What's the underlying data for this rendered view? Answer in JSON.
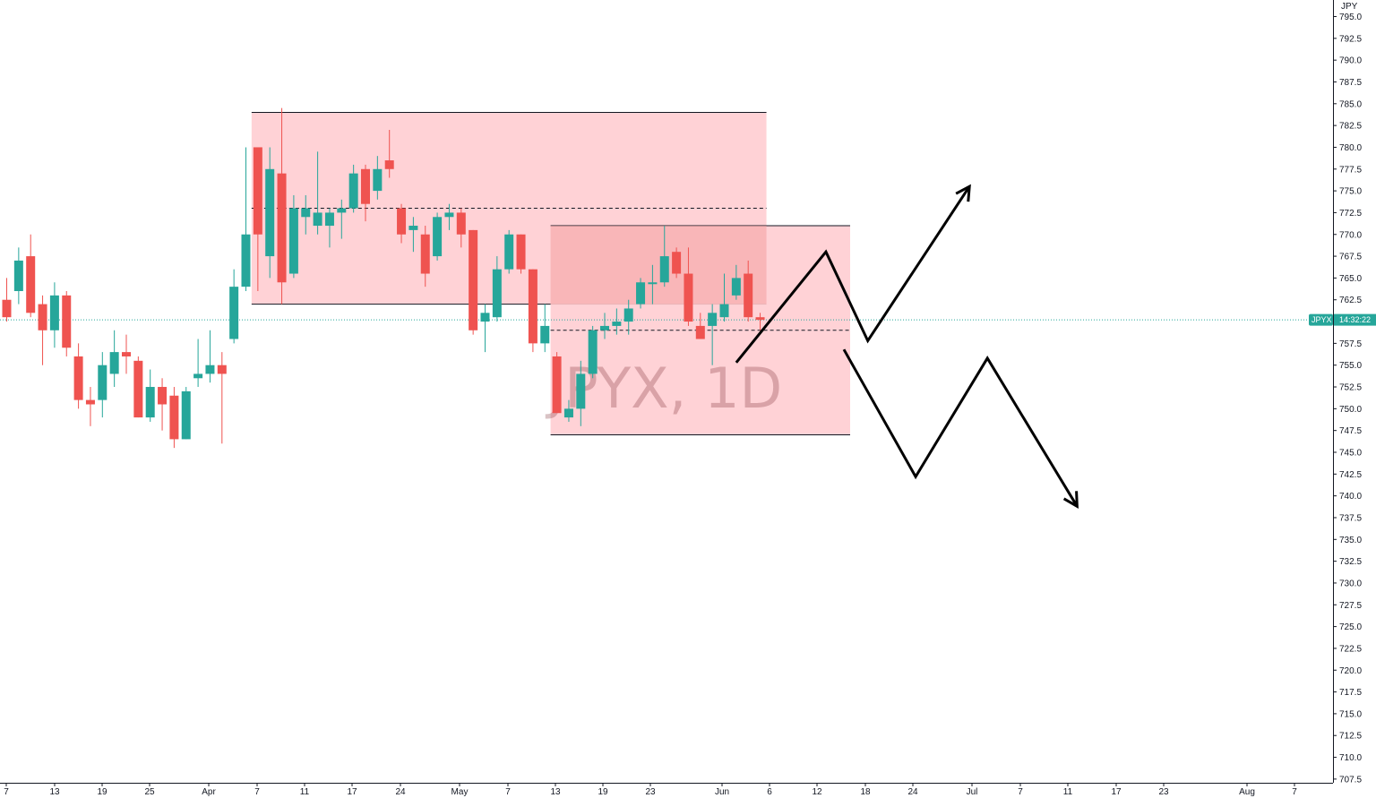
{
  "chart_data": {
    "type": "candlestick",
    "symbol": "JPYX",
    "interval": "1D",
    "watermark": "JPYX, 1D",
    "currency": "JPY",
    "last_price_label": "JPYX",
    "countdown": "14:32:22",
    "last_price": 760.2,
    "ylim": [
      707.5,
      795.0
    ],
    "y_ticks": [
      "707.5",
      "710.0",
      "712.5",
      "715.0",
      "717.5",
      "720.0",
      "722.5",
      "725.0",
      "727.5",
      "730.0",
      "732.5",
      "735.0",
      "737.5",
      "740.0",
      "742.5",
      "745.0",
      "747.5",
      "750.0",
      "752.5",
      "755.0",
      "757.5",
      "760.0",
      "762.5",
      "765.0",
      "767.5",
      "770.0",
      "772.5",
      "775.0",
      "777.5",
      "780.0",
      "782.5",
      "785.0",
      "787.5",
      "790.0",
      "792.5",
      "795.0"
    ],
    "x_ticks": [
      "7",
      "13",
      "19",
      "25",
      "Apr",
      "7",
      "11",
      "17",
      "24",
      "May",
      "7",
      "13",
      "19",
      "23",
      "Jun",
      "6",
      "12",
      "18",
      "24",
      "Jul",
      "7",
      "11",
      "17",
      "23",
      "Aug",
      "7"
    ],
    "colors": {
      "up": "#26a69a",
      "down": "#ef5350",
      "zone_fill": "#ffcdd2",
      "zone_inner": "#f4a3a3",
      "price_line": "#26a69a",
      "arrows": "#000000"
    },
    "candles": [
      {
        "o": 762.5,
        "h": 765.0,
        "l": 760.0,
        "c": 760.5
      },
      {
        "o": 763.5,
        "h": 768.5,
        "l": 762.0,
        "c": 767.0
      },
      {
        "o": 767.5,
        "h": 770.0,
        "l": 760.5,
        "c": 761.0
      },
      {
        "o": 762.0,
        "h": 763.0,
        "l": 755.0,
        "c": 759.0
      },
      {
        "o": 759.0,
        "h": 764.5,
        "l": 757.0,
        "c": 763.0
      },
      {
        "o": 763.0,
        "h": 763.5,
        "l": 756.0,
        "c": 757.0
      },
      {
        "o": 756.0,
        "h": 757.5,
        "l": 750.0,
        "c": 751.0
      },
      {
        "o": 751.0,
        "h": 752.5,
        "l": 748.0,
        "c": 750.5
      },
      {
        "o": 751.0,
        "h": 756.5,
        "l": 749.0,
        "c": 755.0
      },
      {
        "o": 754.0,
        "h": 759.0,
        "l": 752.5,
        "c": 756.5
      },
      {
        "o": 756.5,
        "h": 758.5,
        "l": 754.0,
        "c": 756.0
      },
      {
        "o": 755.5,
        "h": 756.0,
        "l": 749.0,
        "c": 749.0
      },
      {
        "o": 749.0,
        "h": 754.5,
        "l": 748.5,
        "c": 752.5
      },
      {
        "o": 752.5,
        "h": 753.5,
        "l": 747.5,
        "c": 750.5
      },
      {
        "o": 751.5,
        "h": 752.5,
        "l": 745.5,
        "c": 746.5
      },
      {
        "o": 746.5,
        "h": 752.5,
        "l": 746.5,
        "c": 752.0
      },
      {
        "o": 753.5,
        "h": 758.0,
        "l": 752.5,
        "c": 754.0
      },
      {
        "o": 754.0,
        "h": 759.0,
        "l": 753.0,
        "c": 755.0
      },
      {
        "o": 755.0,
        "h": 756.5,
        "l": 746.0,
        "c": 754.0
      },
      {
        "o": 758.0,
        "h": 766.0,
        "l": 757.5,
        "c": 764.0
      },
      {
        "o": 764.0,
        "h": 780.0,
        "l": 763.5,
        "c": 770.0
      },
      {
        "o": 780.0,
        "h": 780.0,
        "l": 763.5,
        "c": 770.0
      },
      {
        "o": 767.5,
        "h": 780.0,
        "l": 765.0,
        "c": 777.5
      },
      {
        "o": 777.0,
        "h": 784.5,
        "l": 762.0,
        "c": 764.5
      },
      {
        "o": 765.5,
        "h": 774.5,
        "l": 765.0,
        "c": 773.0
      },
      {
        "o": 772.0,
        "h": 774.5,
        "l": 770.0,
        "c": 773.0
      },
      {
        "o": 771.0,
        "h": 779.5,
        "l": 770.0,
        "c": 772.5
      },
      {
        "o": 771.0,
        "h": 773.0,
        "l": 768.5,
        "c": 772.5
      },
      {
        "o": 772.5,
        "h": 774.0,
        "l": 769.5,
        "c": 773.0
      },
      {
        "o": 773.0,
        "h": 778.0,
        "l": 772.5,
        "c": 777.0
      },
      {
        "o": 777.5,
        "h": 778.0,
        "l": 771.5,
        "c": 773.5
      },
      {
        "o": 775.0,
        "h": 779.0,
        "l": 774.0,
        "c": 777.5
      },
      {
        "o": 778.5,
        "h": 782.0,
        "l": 776.5,
        "c": 777.5
      },
      {
        "o": 773.0,
        "h": 773.5,
        "l": 769.0,
        "c": 770.0
      },
      {
        "o": 770.5,
        "h": 772.0,
        "l": 768.0,
        "c": 771.0
      },
      {
        "o": 770.0,
        "h": 771.0,
        "l": 764.0,
        "c": 765.5
      },
      {
        "o": 767.5,
        "h": 772.5,
        "l": 767.0,
        "c": 772.0
      },
      {
        "o": 772.0,
        "h": 773.5,
        "l": 770.5,
        "c": 772.5
      },
      {
        "o": 772.5,
        "h": 773.0,
        "l": 768.5,
        "c": 770.0
      },
      {
        "o": 770.5,
        "h": 770.5,
        "l": 758.5,
        "c": 759.0
      },
      {
        "o": 760.0,
        "h": 762.0,
        "l": 756.5,
        "c": 761.0
      },
      {
        "o": 760.5,
        "h": 767.5,
        "l": 760.0,
        "c": 766.0
      },
      {
        "o": 766.0,
        "h": 770.5,
        "l": 765.5,
        "c": 770.0
      },
      {
        "o": 770.0,
        "h": 770.0,
        "l": 765.5,
        "c": 766.0
      },
      {
        "o": 766.0,
        "h": 766.0,
        "l": 756.5,
        "c": 757.5
      },
      {
        "o": 757.5,
        "h": 762.0,
        "l": 756.5,
        "c": 759.5
      },
      {
        "o": 756.0,
        "h": 756.5,
        "l": 749.5,
        "c": 749.5
      },
      {
        "o": 749.0,
        "h": 751.0,
        "l": 748.5,
        "c": 750.0
      },
      {
        "o": 750.0,
        "h": 755.5,
        "l": 748.0,
        "c": 754.0
      },
      {
        "o": 754.0,
        "h": 759.5,
        "l": 753.5,
        "c": 759.0
      },
      {
        "o": 759.0,
        "h": 761.0,
        "l": 758.0,
        "c": 759.5
      },
      {
        "o": 759.5,
        "h": 761.5,
        "l": 758.5,
        "c": 760.0
      },
      {
        "o": 760.0,
        "h": 762.5,
        "l": 758.5,
        "c": 761.5
      },
      {
        "o": 762.0,
        "h": 765.0,
        "l": 761.5,
        "c": 764.5
      },
      {
        "o": 764.5,
        "h": 766.5,
        "l": 762.0,
        "c": 764.5
      },
      {
        "o": 764.5,
        "h": 771.0,
        "l": 764.0,
        "c": 767.5
      },
      {
        "o": 768.0,
        "h": 768.5,
        "l": 765.0,
        "c": 765.5
      },
      {
        "o": 765.5,
        "h": 768.5,
        "l": 759.5,
        "c": 760.0
      },
      {
        "o": 759.5,
        "h": 761.0,
        "l": 758.0,
        "c": 758.0
      },
      {
        "o": 759.5,
        "h": 762.0,
        "l": 755.0,
        "c": 761.0
      },
      {
        "o": 760.5,
        "h": 765.5,
        "l": 760.0,
        "c": 762.0
      },
      {
        "o": 763.0,
        "h": 766.5,
        "l": 762.5,
        "c": 765.0
      },
      {
        "o": 765.5,
        "h": 767.0,
        "l": 760.0,
        "c": 760.5
      },
      {
        "o": 760.5,
        "h": 761.0,
        "l": 759.0,
        "c": 760.2
      }
    ],
    "zones": [
      {
        "x_from": 21,
        "x_to": 63,
        "top": 784.0,
        "bottom": 762.0,
        "mid": 773.0,
        "style": "light"
      },
      {
        "x_from": 46,
        "x_to": 70,
        "top": 771.0,
        "bottom": 747.0,
        "mid": 759.0,
        "style": "light"
      },
      {
        "x_from": 46,
        "x_to": 63,
        "top": 771.0,
        "bottom": 762.0,
        "style": "overlap"
      }
    ],
    "projections": [
      {
        "name": "bullish",
        "points": [
          [
            61.0,
            755.3
          ],
          [
            68.5,
            768.0
          ],
          [
            72.0,
            757.8
          ],
          [
            80.5,
            775.5
          ]
        ]
      },
      {
        "name": "bearish",
        "points": [
          [
            70.0,
            756.8
          ],
          [
            76.0,
            742.2
          ],
          [
            82.0,
            755.8
          ],
          [
            89.5,
            738.8
          ]
        ]
      }
    ]
  }
}
